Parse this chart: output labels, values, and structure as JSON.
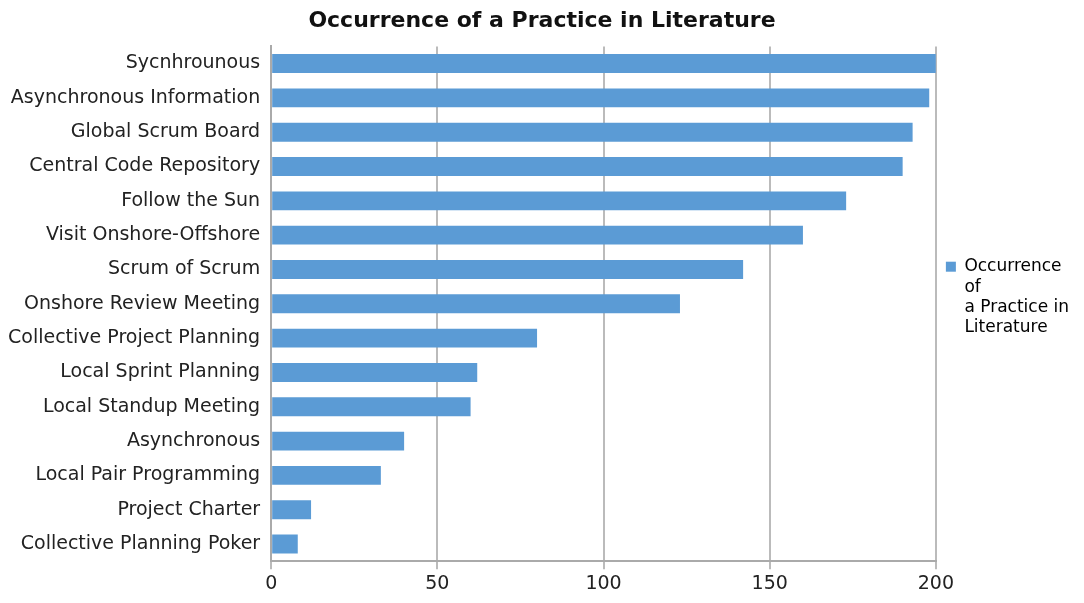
{
  "chart_data": {
    "type": "bar",
    "orientation": "horizontal",
    "title": "Occurrence of a Practice in Literature",
    "categories": [
      "Sycnhrounous",
      "Asynchronous Information",
      "Global Scrum Board",
      "Central Code Repository",
      "Follow the Sun",
      "Visit Onshore-Offshore",
      "Scrum of Scrum",
      "Onshore Review Meeting",
      "Collective Project Planning",
      "Local Sprint Planning",
      "Local Standup Meeting",
      "Asynchronous",
      "Local Pair Programming",
      "Project Charter",
      "Collective Planning Poker"
    ],
    "series": [
      {
        "name": "Occurrence of a Practice in Literature",
        "color": "#5b9bd5",
        "values": [
          200,
          198,
          193,
          190,
          173,
          160,
          142,
          123,
          80,
          62,
          60,
          40,
          33,
          12,
          8
        ]
      }
    ],
    "xlim": [
      0,
      200
    ],
    "xticks": [
      0,
      50,
      100,
      150,
      200
    ],
    "grid": "x",
    "legend": "right"
  }
}
